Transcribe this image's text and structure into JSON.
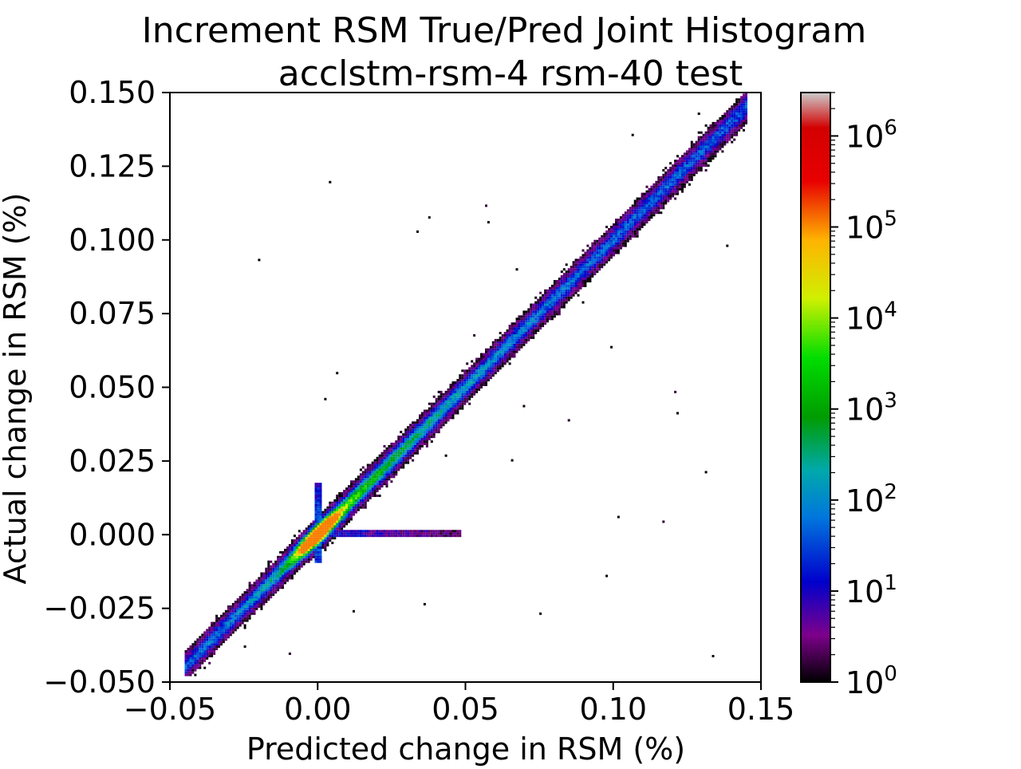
{
  "chart_data": {
    "type": "heatmap",
    "title": "Increment RSM True/Pred Joint Histogram",
    "subtitle": "acclstm-rsm-4 rsm-40 test",
    "xlabel": "Predicted change in RSM (%)",
    "ylabel": "Actual change in RSM (%)",
    "xlim": [
      -0.05,
      0.15
    ],
    "ylim": [
      -0.05,
      0.15
    ],
    "xticks": [
      -0.05,
      0.0,
      0.05,
      0.1,
      0.15
    ],
    "xtick_labels": [
      "−0.05",
      "0.00",
      "0.05",
      "0.10",
      "0.15"
    ],
    "yticks": [
      -0.05,
      -0.025,
      0.0,
      0.025,
      0.05,
      0.075,
      0.1,
      0.125,
      0.15
    ],
    "ytick_labels": [
      "−0.050",
      "−0.025",
      "0.000",
      "0.025",
      "0.050",
      "0.075",
      "0.100",
      "0.125",
      "0.150"
    ],
    "grid": false,
    "colorbar": {
      "scale": "log",
      "range": [
        1,
        3000000
      ],
      "ticks": [
        1,
        10,
        100,
        1000,
        10000,
        100000,
        1000000
      ],
      "tick_labels": [
        {
          "base": "10",
          "exp": "0"
        },
        {
          "base": "10",
          "exp": "1"
        },
        {
          "base": "10",
          "exp": "2"
        },
        {
          "base": "10",
          "exp": "3"
        },
        {
          "base": "10",
          "exp": "4"
        },
        {
          "base": "10",
          "exp": "5"
        },
        {
          "base": "10",
          "exp": "6"
        }
      ],
      "colormap": "nipy_spectral",
      "colormap_stops": [
        "#000000",
        "#7d008c",
        "#0000cc",
        "#0077dd",
        "#00a9aa",
        "#009c00",
        "#00dd00",
        "#cff000",
        "#ffb300",
        "#e80000",
        "#cccccc"
      ]
    },
    "distribution": {
      "main_band": {
        "from": [
          -0.04,
          -0.04
        ],
        "to": [
          0.14,
          0.148
        ],
        "slope": 1.0
      },
      "peak": [
        0.0,
        -0.001
      ],
      "peak_count_approx": 300000,
      "vertical_spike_at_x": 0.0,
      "horizontal_spike_at_y": 0.0
    }
  }
}
